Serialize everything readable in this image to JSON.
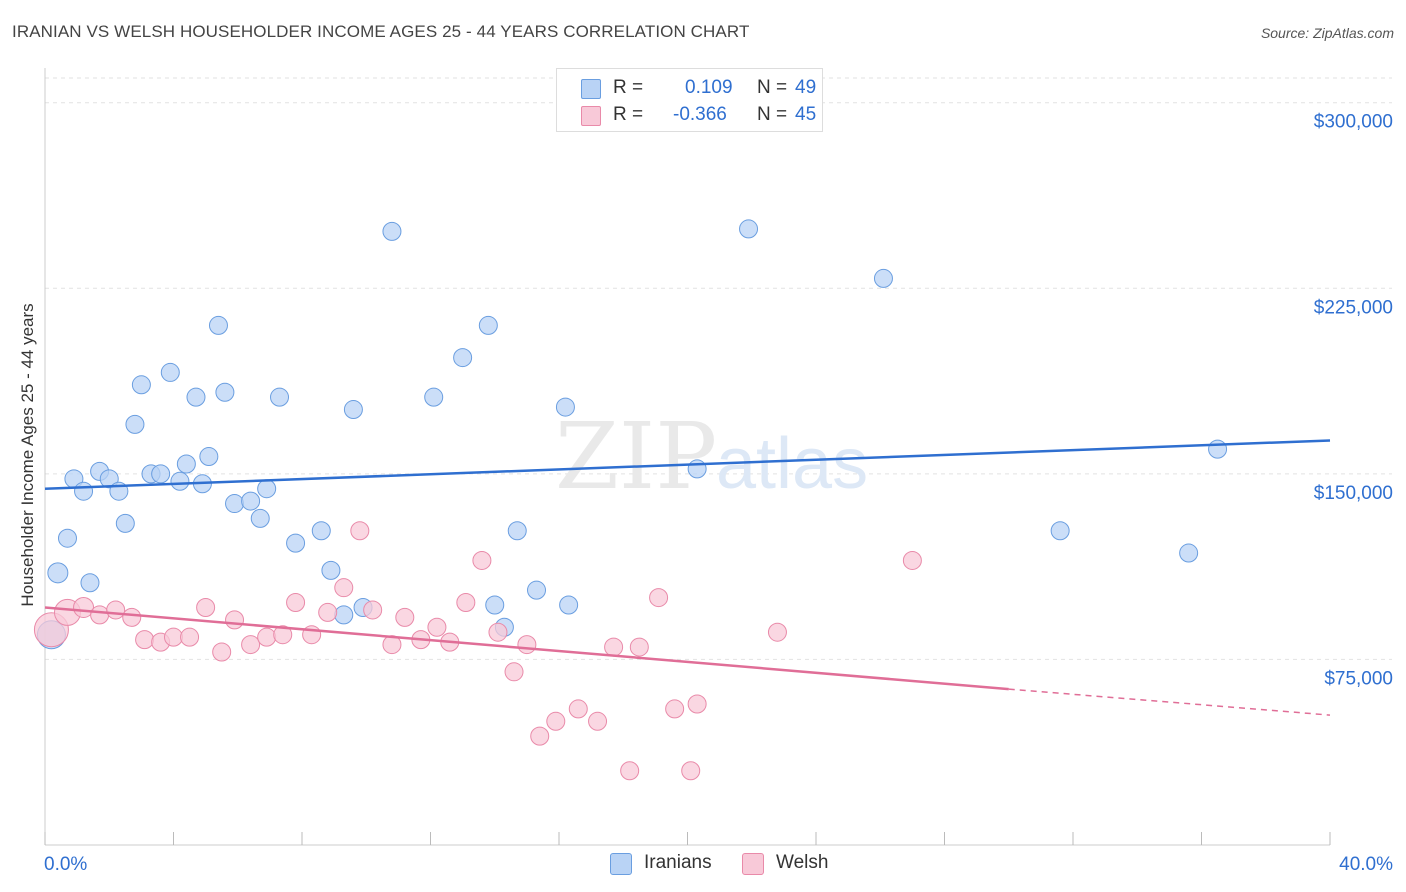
{
  "title": "IRANIAN VS WELSH HOUSEHOLDER INCOME AGES 25 - 44 YEARS CORRELATION CHART",
  "source": "Source: ZipAtlas.com",
  "watermark": {
    "zip": "ZIP",
    "atlas": "atlas"
  },
  "legend": {
    "rows": [
      {
        "r_label": "R =",
        "r_value": "0.109",
        "n_label": "N =",
        "n_value": "49",
        "color": "#b9d3f5",
        "border": "#6a9ee0"
      },
      {
        "r_label": "R =",
        "r_value": "-0.366",
        "n_label": "N =",
        "n_value": "45",
        "color": "#f8c9d8",
        "border": "#e98aa9"
      }
    ]
  },
  "bottom_legend": [
    {
      "label": "Iranians",
      "color": "#b9d3f5",
      "border": "#6a9ee0"
    },
    {
      "label": "Welsh",
      "color": "#f8c9d8",
      "border": "#e98aa9"
    }
  ],
  "chart_data": {
    "type": "scatter",
    "title": "IRANIAN VS WELSH HOUSEHOLDER INCOME AGES 25 - 44 YEARS CORRELATION CHART",
    "xlabel": "",
    "ylabel": "Householder Income Ages 25 - 44 years",
    "xlim": [
      0,
      40
    ],
    "ylim": [
      0,
      310000
    ],
    "x_tick_labels": [
      "0.0%",
      "40.0%"
    ],
    "y_ticks": [
      75000,
      150000,
      225000,
      300000
    ],
    "y_tick_labels": [
      "$75,000",
      "$150,000",
      "$225,000",
      "$300,000"
    ],
    "grid": true,
    "series": [
      {
        "name": "Iranians",
        "color": "#6a9ee0",
        "fill": "#b9d3f5",
        "trend": {
          "x": [
            0,
            40
          ],
          "y": [
            144000,
            163500
          ],
          "color": "#2f6fd0"
        },
        "points": [
          [
            0.2,
            85000,
            14
          ],
          [
            0.4,
            110000,
            10
          ],
          [
            0.7,
            124000,
            9
          ],
          [
            0.9,
            148000,
            9
          ],
          [
            1.2,
            143000,
            9
          ],
          [
            1.4,
            106000,
            9
          ],
          [
            1.7,
            151000,
            9
          ],
          [
            2.0,
            148000,
            9
          ],
          [
            2.3,
            143000,
            9
          ],
          [
            2.5,
            130000,
            9
          ],
          [
            2.8,
            170000,
            9
          ],
          [
            3.0,
            186000,
            9
          ],
          [
            3.3,
            150000,
            9
          ],
          [
            3.6,
            150000,
            9
          ],
          [
            3.9,
            191000,
            9
          ],
          [
            4.2,
            147000,
            9
          ],
          [
            4.4,
            154000,
            9
          ],
          [
            4.7,
            181000,
            9
          ],
          [
            4.9,
            146000,
            9
          ],
          [
            5.1,
            157000,
            9
          ],
          [
            5.4,
            210000,
            9
          ],
          [
            5.6,
            183000,
            9
          ],
          [
            5.9,
            138000,
            9
          ],
          [
            6.4,
            139000,
            9
          ],
          [
            6.7,
            132000,
            9
          ],
          [
            6.9,
            144000,
            9
          ],
          [
            7.3,
            181000,
            9
          ],
          [
            7.8,
            122000,
            9
          ],
          [
            8.6,
            127000,
            9
          ],
          [
            8.9,
            111000,
            9
          ],
          [
            9.3,
            93000,
            9
          ],
          [
            9.6,
            176000,
            9
          ],
          [
            9.9,
            96000,
            9
          ],
          [
            10.8,
            248000,
            9
          ],
          [
            12.1,
            181000,
            9
          ],
          [
            13.0,
            197000,
            9
          ],
          [
            13.8,
            210000,
            9
          ],
          [
            14.0,
            97000,
            9
          ],
          [
            14.3,
            88000,
            9
          ],
          [
            14.7,
            127000,
            9
          ],
          [
            15.3,
            103000,
            9
          ],
          [
            16.2,
            177000,
            9
          ],
          [
            16.3,
            97000,
            9
          ],
          [
            20.3,
            152000,
            9
          ],
          [
            21.9,
            249000,
            9
          ],
          [
            26.1,
            229000,
            9
          ],
          [
            31.6,
            127000,
            9
          ],
          [
            35.6,
            118000,
            9
          ],
          [
            36.5,
            160000,
            9
          ]
        ]
      },
      {
        "name": "Welsh",
        "color": "#e98aa9",
        "fill": "#f8c9d8",
        "trend": {
          "x": [
            0,
            30.0
          ],
          "y": [
            96000,
            63000
          ],
          "dashed_to": [
            40,
            52500
          ],
          "color": "#e06e97"
        },
        "points": [
          [
            0.2,
            87000,
            17
          ],
          [
            0.7,
            94000,
            13
          ],
          [
            1.2,
            96000,
            10
          ],
          [
            1.7,
            93000,
            9
          ],
          [
            2.2,
            95000,
            9
          ],
          [
            2.7,
            92000,
            9
          ],
          [
            3.1,
            83000,
            9
          ],
          [
            3.6,
            82000,
            9
          ],
          [
            4.0,
            84000,
            9
          ],
          [
            4.5,
            84000,
            9
          ],
          [
            5.0,
            96000,
            9
          ],
          [
            5.5,
            78000,
            9
          ],
          [
            5.9,
            91000,
            9
          ],
          [
            6.4,
            81000,
            9
          ],
          [
            6.9,
            84000,
            9
          ],
          [
            7.4,
            85000,
            9
          ],
          [
            7.8,
            98000,
            9
          ],
          [
            8.3,
            85000,
            9
          ],
          [
            8.8,
            94000,
            9
          ],
          [
            9.3,
            104000,
            9
          ],
          [
            9.8,
            127000,
            9
          ],
          [
            10.2,
            95000,
            9
          ],
          [
            10.8,
            81000,
            9
          ],
          [
            11.2,
            92000,
            9
          ],
          [
            11.7,
            83000,
            9
          ],
          [
            12.2,
            88000,
            9
          ],
          [
            12.6,
            82000,
            9
          ],
          [
            13.1,
            98000,
            9
          ],
          [
            13.6,
            115000,
            9
          ],
          [
            14.1,
            86000,
            9
          ],
          [
            14.6,
            70000,
            9
          ],
          [
            15.0,
            81000,
            9
          ],
          [
            15.4,
            44000,
            9
          ],
          [
            15.9,
            50000,
            9
          ],
          [
            16.6,
            55000,
            9
          ],
          [
            17.2,
            50000,
            9
          ],
          [
            17.7,
            80000,
            9
          ],
          [
            18.2,
            30000,
            9
          ],
          [
            18.5,
            80000,
            9
          ],
          [
            19.1,
            100000,
            9
          ],
          [
            19.6,
            55000,
            9
          ],
          [
            20.1,
            30000,
            9
          ],
          [
            20.3,
            57000,
            9
          ],
          [
            22.8,
            86000,
            9
          ],
          [
            27.0,
            115000,
            9
          ]
        ]
      }
    ]
  }
}
